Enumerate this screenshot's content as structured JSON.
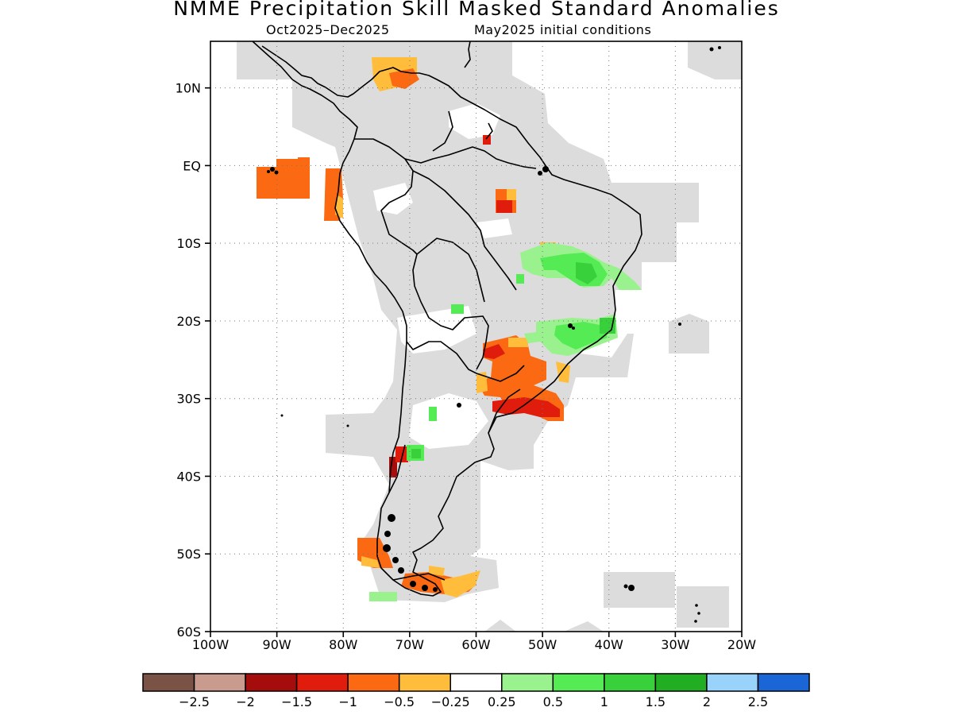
{
  "header": {
    "title": "NMME Precipitation Skill Masked Standard Anomalies",
    "period": "Oct2025–Dec2025",
    "initial_conditions": "May2025 initial conditions"
  },
  "axes": {
    "lat_labels": [
      "10N",
      "EQ",
      "10S",
      "20S",
      "30S",
      "40S",
      "50S",
      "60S"
    ],
    "lat_values": [
      10,
      0,
      -10,
      -20,
      -30,
      -40,
      -50,
      -60
    ],
    "lon_labels": [
      "100W",
      "90W",
      "80W",
      "70W",
      "60W",
      "50W",
      "40W",
      "30W",
      "20W"
    ],
    "lon_values": [
      -100,
      -90,
      -80,
      -70,
      -60,
      -50,
      -40,
      -30,
      -20
    ],
    "lon_range": [
      -100,
      -20
    ],
    "lat_range": [
      -60,
      16
    ]
  },
  "colorbar": {
    "colors": [
      "#7b5246",
      "#c99a8e",
      "#a50d0d",
      "#e01c0c",
      "#fb6a13",
      "#ffbd3b",
      "#ffffff",
      "#99f28d",
      "#55eb54",
      "#39d13b",
      "#22ae22",
      "#99d2fa",
      "#1a66d6"
    ],
    "labels": [
      "−2.5",
      "−2",
      "−1.5",
      "−1",
      "−0.5",
      "−0.25",
      "0.25",
      "0.5",
      "1",
      "1.5",
      "2",
      "2.5"
    ]
  },
  "legend_colors": {
    "mask_gray": "#dcdcdc",
    "coast": "#000000"
  }
}
